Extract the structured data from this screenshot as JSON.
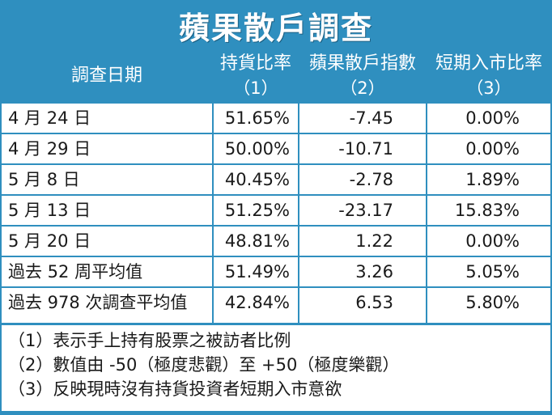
{
  "title": "蘋果散戶調查",
  "columns": [
    {
      "label": "調查日期",
      "sub": ""
    },
    {
      "label": "持貨比率",
      "sub": "（1）"
    },
    {
      "label": "蘋果散戶指數",
      "sub": "（2）"
    },
    {
      "label": "短期入市比率",
      "sub": "（3）"
    }
  ],
  "rows": [
    {
      "date": "4 月 24 日",
      "hold": "51.65%",
      "index": "-7.45",
      "entry": "0.00%"
    },
    {
      "date": "4 月 29 日",
      "hold": "50.00%",
      "index": "-10.71",
      "entry": "0.00%"
    },
    {
      "date": "5 月 8 日",
      "hold": "40.45%",
      "index": "-2.78",
      "entry": "1.89%"
    },
    {
      "date": "5 月 13 日",
      "hold": "51.25%",
      "index": "-23.17",
      "entry": "15.83%"
    },
    {
      "date": "5 月 20 日",
      "hold": "48.81%",
      "index": "1.22",
      "entry": "0.00%"
    },
    {
      "date": "過去 52 周平均值",
      "hold": "51.49%",
      "index": "3.26",
      "entry": "5.05%"
    },
    {
      "date": "過去 978 次調查平均值",
      "hold": "42.84%",
      "index": "6.53",
      "entry": "5.80%"
    }
  ],
  "notes": [
    "（1）表示手上持有股票之被訪者比例",
    "（2）數值由 -50（極度悲觀）至 +50（極度樂觀）",
    "（3）反映現時沒有持貨投資者短期入市意欲"
  ],
  "colors": {
    "accent": "#2f8fbf",
    "header_text": "#ffffff",
    "body_text": "#1a1a1a"
  }
}
